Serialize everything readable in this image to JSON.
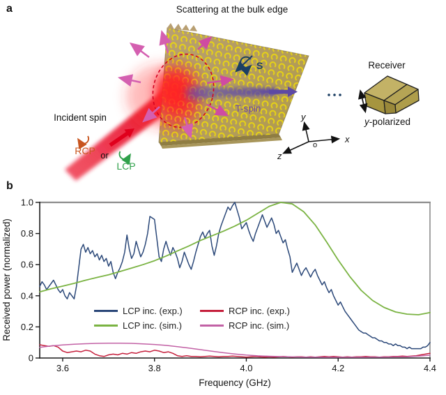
{
  "panel_a": {
    "label": "a",
    "title": "Scattering at the bulk edge",
    "incident_spin": "Incident spin",
    "rcp": "RCP",
    "or": "or",
    "lcp": "LCP",
    "s": "S",
    "t_spin": "T-spin",
    "receiver": "Receiver",
    "polarized_y": "y",
    "polarized_rest": "-polarized",
    "axis_x": "x",
    "axis_y": "y",
    "axis_z": "z",
    "origin": "o",
    "colors": {
      "rcp_text": "#c8551f",
      "lcp_text": "#2fa04a",
      "t_spin_text": "#6f4c9f",
      "spin_s": "#1c3f63",
      "beam_red": "#e8001e",
      "scatter_arrow_pink": "#d45fb0",
      "transverse_arrow_purple": "#5d49a4",
      "slab_ring_yellow": "#e8d413",
      "receiver_khaki": "#b5a455"
    }
  },
  "panel_b": {
    "label": "b"
  },
  "chart_data": {
    "type": "line",
    "title": "",
    "xlabel": "Frequency (GHz)",
    "ylabel": "Received power (normalized)",
    "xlim": [
      3.55,
      4.4
    ],
    "ylim": [
      0,
      1.0
    ],
    "grid": false,
    "legend_position": "inside lower-center, two columns",
    "x_tick_values": [
      3.6,
      3.8,
      4.0,
      4.2,
      4.4
    ],
    "x_tick_labels": [
      "3.6",
      "3.8",
      "4.0",
      "4.2",
      "4.4"
    ],
    "y_tick_values": [
      0,
      0.2,
      0.4,
      0.6,
      0.8,
      1.0
    ],
    "y_tick_labels": [
      "0",
      "0.2",
      "0.4",
      "0.6",
      "0.8",
      "1.0"
    ],
    "series": [
      {
        "name": "LCP inc. (exp.)",
        "color": "#2a4778",
        "width": 1.5,
        "x_start": 3.55,
        "x_step": 0.005,
        "values": [
          0.46,
          0.49,
          0.47,
          0.44,
          0.46,
          0.48,
          0.5,
          0.47,
          0.44,
          0.42,
          0.44,
          0.4,
          0.38,
          0.42,
          0.4,
          0.38,
          0.46,
          0.58,
          0.7,
          0.73,
          0.68,
          0.71,
          0.67,
          0.69,
          0.65,
          0.67,
          0.63,
          0.66,
          0.62,
          0.64,
          0.59,
          0.62,
          0.55,
          0.51,
          0.55,
          0.58,
          0.62,
          0.68,
          0.79,
          0.7,
          0.64,
          0.67,
          0.75,
          0.7,
          0.65,
          0.68,
          0.73,
          0.8,
          0.91,
          0.9,
          0.89,
          0.77,
          0.65,
          0.62,
          0.7,
          0.75,
          0.7,
          0.66,
          0.71,
          0.68,
          0.64,
          0.58,
          0.62,
          0.68,
          0.64,
          0.6,
          0.57,
          0.62,
          0.68,
          0.73,
          0.78,
          0.81,
          0.77,
          0.8,
          0.82,
          0.72,
          0.66,
          0.72,
          0.8,
          0.85,
          0.89,
          0.93,
          0.97,
          0.95,
          0.98,
          1.0,
          0.95,
          0.9,
          0.83,
          0.85,
          0.87,
          0.82,
          0.78,
          0.75,
          0.8,
          0.84,
          0.88,
          0.92,
          0.88,
          0.84,
          0.87,
          0.9,
          0.86,
          0.8,
          0.82,
          0.78,
          0.74,
          0.76,
          0.7,
          0.65,
          0.55,
          0.58,
          0.61,
          0.57,
          0.53,
          0.56,
          0.58,
          0.55,
          0.52,
          0.55,
          0.57,
          0.53,
          0.5,
          0.47,
          0.49,
          0.45,
          0.42,
          0.44,
          0.4,
          0.37,
          0.34,
          0.36,
          0.33,
          0.3,
          0.28,
          0.26,
          0.24,
          0.22,
          0.2,
          0.18,
          0.17,
          0.16,
          0.16,
          0.15,
          0.14,
          0.13,
          0.13,
          0.12,
          0.11,
          0.11,
          0.1,
          0.1,
          0.09,
          0.09,
          0.08,
          0.09,
          0.08,
          0.08,
          0.07,
          0.07,
          0.06,
          0.07,
          0.06,
          0.06,
          0.06,
          0.06,
          0.06,
          0.07,
          0.07,
          0.08,
          0.1
        ]
      },
      {
        "name": "LCP inc. (sim.)",
        "color": "#7ab342",
        "width": 1.8,
        "x_start": 3.55,
        "x_step": 0.025,
        "values": [
          0.425,
          0.445,
          0.462,
          0.48,
          0.5,
          0.518,
          0.535,
          0.556,
          0.578,
          0.6,
          0.625,
          0.655,
          0.688,
          0.72,
          0.755,
          0.785,
          0.815,
          0.848,
          0.885,
          0.93,
          0.975,
          1.0,
          0.99,
          0.94,
          0.855,
          0.745,
          0.63,
          0.525,
          0.435,
          0.37,
          0.325,
          0.296,
          0.282,
          0.278,
          0.292
        ]
      },
      {
        "name": "RCP inc. (exp.)",
        "color": "#c51f3c",
        "width": 1.5,
        "x_start": 3.55,
        "x_step": 0.01,
        "values": [
          0.085,
          0.08,
          0.075,
          0.08,
          0.07,
          0.045,
          0.035,
          0.04,
          0.045,
          0.04,
          0.05,
          0.045,
          0.025,
          0.015,
          0.01,
          0.02,
          0.025,
          0.02,
          0.03,
          0.025,
          0.035,
          0.03,
          0.04,
          0.045,
          0.04,
          0.05,
          0.045,
          0.035,
          0.04,
          0.03,
          0.015,
          0.01,
          0.015,
          0.01,
          0.01,
          0.008,
          0.01,
          0.012,
          0.01,
          0.008,
          0.01,
          0.01,
          0.012,
          0.01,
          0.008,
          0.006,
          0.008,
          0.01,
          0.008,
          0.006,
          0.008,
          0.006,
          0.008,
          0.01,
          0.008,
          0.006,
          0.008,
          0.008,
          0.006,
          0.008,
          0.006,
          0.008,
          0.01,
          0.008,
          0.01,
          0.008,
          0.006,
          0.008,
          0.006,
          0.008,
          0.008,
          0.01,
          0.008,
          0.008,
          0.006,
          0.008,
          0.008,
          0.01,
          0.01,
          0.012,
          0.01,
          0.012,
          0.015,
          0.02,
          0.025,
          0.03
        ]
      },
      {
        "name": "RCP inc. (sim.)",
        "color": "#c261a5",
        "width": 1.5,
        "x_start": 3.55,
        "x_step": 0.025,
        "values": [
          0.068,
          0.078,
          0.084,
          0.089,
          0.092,
          0.094,
          0.095,
          0.095,
          0.094,
          0.091,
          0.087,
          0.081,
          0.073,
          0.064,
          0.054,
          0.044,
          0.034,
          0.026,
          0.019,
          0.014,
          0.011,
          0.009,
          0.007,
          0.006,
          0.006,
          0.005,
          0.005,
          0.005,
          0.005,
          0.006,
          0.006,
          0.007,
          0.008,
          0.012,
          0.018
        ]
      }
    ]
  }
}
